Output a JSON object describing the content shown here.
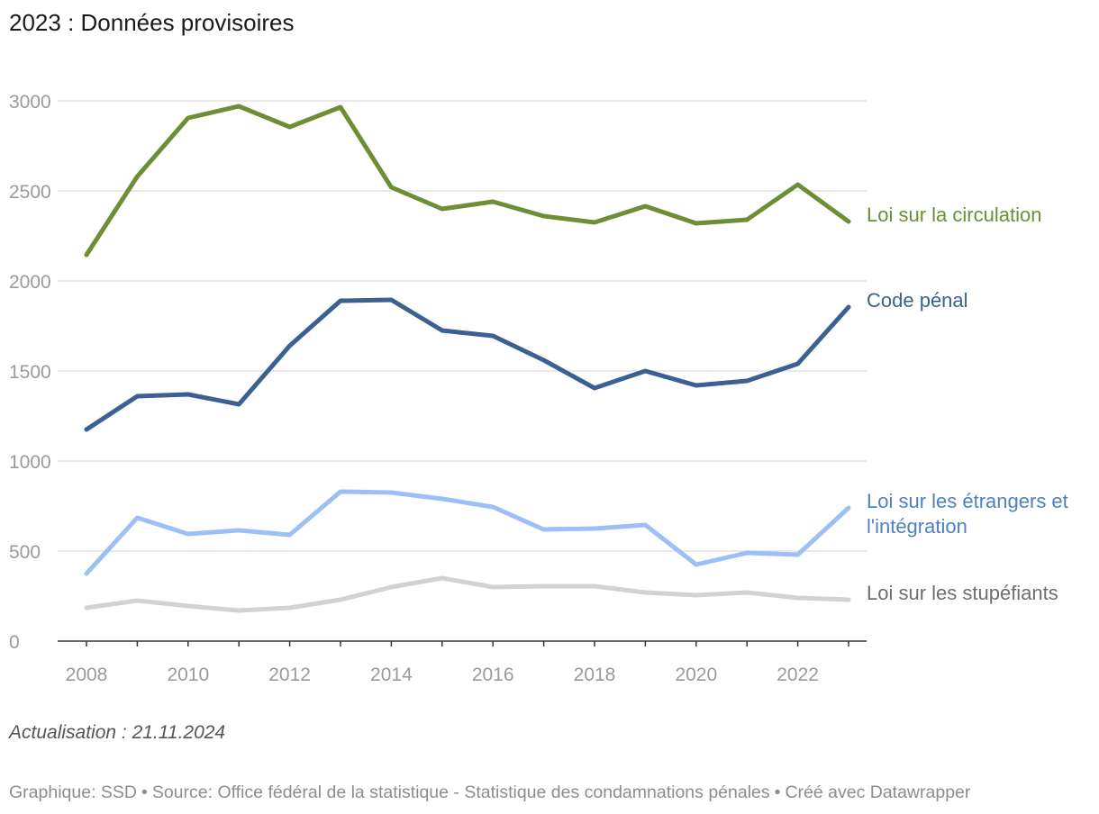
{
  "title": "2023 : Données provisoires",
  "notes": "Actualisation : 21.11.2024",
  "footer": {
    "graphic": "Graphique: SSD",
    "source": "Source: Office fédéral de la statistique - Statistique des condamnations pénales",
    "tool": "Créé avec Datawrapper",
    "separator": "•"
  },
  "chart_data": {
    "type": "line",
    "title": "2023 : Données provisoires",
    "xlabel": "",
    "ylabel": "",
    "x": [
      2008,
      2009,
      2010,
      2011,
      2012,
      2013,
      2014,
      2015,
      2016,
      2017,
      2018,
      2019,
      2020,
      2021,
      2022,
      2023
    ],
    "xticks": [
      "2008",
      "2010",
      "2012",
      "2014",
      "2016",
      "2018",
      "2020",
      "2022"
    ],
    "xlim": [
      2008,
      2023
    ],
    "yticks": [
      "0",
      "500",
      "1000",
      "1500",
      "2000",
      "2500",
      "3000"
    ],
    "ylim": [
      0,
      3000
    ],
    "grid": true,
    "legend": "direct labels at line ends",
    "series": [
      {
        "name": "Loi sur la circulation",
        "color": "#6e8e35",
        "label_lines": [
          "Loi sur la circulation"
        ],
        "values": [
          2145,
          2580,
          2905,
          2970,
          2855,
          2965,
          2520,
          2400,
          2440,
          2360,
          2325,
          2415,
          2320,
          2340,
          2535,
          2330
        ]
      },
      {
        "name": "Code pénal",
        "color": "#3a6191",
        "label_lines": [
          "Code pénal"
        ],
        "values": [
          1175,
          1360,
          1370,
          1315,
          1640,
          1890,
          1895,
          1725,
          1695,
          1560,
          1405,
          1500,
          1420,
          1445,
          1540,
          1855
        ]
      },
      {
        "name": "Loi sur les étrangers et l'intégration",
        "color": "#9cc0f5",
        "label_color": "#4f7fc6",
        "label_lines": [
          "Loi sur les étrangers et",
          "l'intégration"
        ],
        "values": [
          375,
          685,
          595,
          615,
          590,
          830,
          825,
          790,
          745,
          620,
          625,
          645,
          425,
          490,
          480,
          740
        ]
      },
      {
        "name": "Loi sur les stupéfiants",
        "color": "#d2d2d2",
        "label_color": "#6e6e6e",
        "label_lines": [
          "Loi sur les stupéfiants"
        ],
        "values": [
          185,
          225,
          195,
          170,
          185,
          230,
          300,
          350,
          300,
          305,
          305,
          270,
          255,
          270,
          240,
          230
        ]
      }
    ]
  }
}
